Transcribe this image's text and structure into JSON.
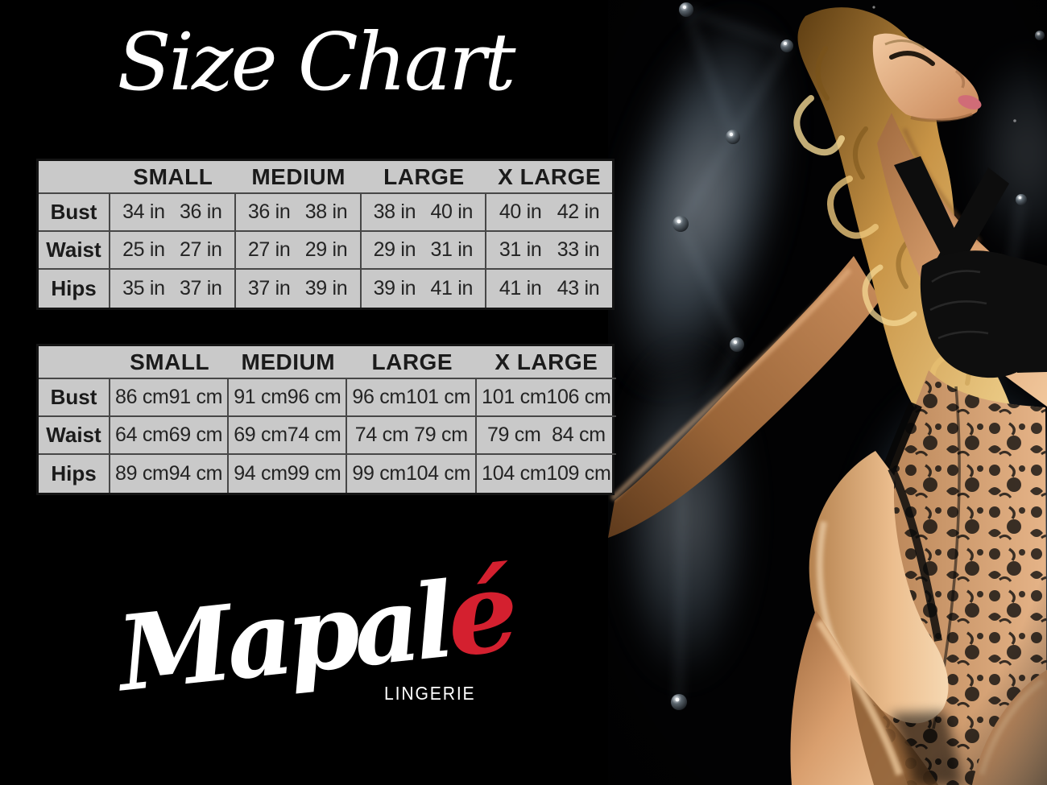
{
  "title": "Size Chart",
  "chart_data": [
    {
      "type": "table",
      "unit": "inches",
      "size_headers": [
        "SMALL",
        "MEDIUM",
        "LARGE",
        "X LARGE"
      ],
      "rows": [
        {
          "label": "Bust",
          "cells": [
            [
              "34 in",
              "36 in"
            ],
            [
              "36 in",
              "38 in"
            ],
            [
              "38 in",
              "40 in"
            ],
            [
              "40 in",
              "42 in"
            ]
          ]
        },
        {
          "label": "Waist",
          "cells": [
            [
              "25 in",
              "27 in"
            ],
            [
              "27 in",
              "29 in"
            ],
            [
              "29 in",
              "31 in"
            ],
            [
              "31 in",
              "33 in"
            ]
          ]
        },
        {
          "label": "Hips",
          "cells": [
            [
              "35 in",
              "37 in"
            ],
            [
              "37 in",
              "39 in"
            ],
            [
              "39 in",
              "41 in"
            ],
            [
              "41 in",
              "43 in"
            ]
          ]
        }
      ]
    },
    {
      "type": "table",
      "unit": "centimeters",
      "size_headers": [
        "SMALL",
        "MEDIUM",
        "LARGE",
        "X LARGE"
      ],
      "rows": [
        {
          "label": "Bust",
          "cells": [
            [
              "86 cm",
              "91 cm"
            ],
            [
              "91 cm",
              "96 cm"
            ],
            [
              "96 cm",
              "101 cm"
            ],
            [
              "101 cm",
              "106 cm"
            ]
          ]
        },
        {
          "label": "Waist",
          "cells": [
            [
              "64 cm",
              "69 cm"
            ],
            [
              "69 cm",
              "74 cm"
            ],
            [
              "74 cm",
              "79 cm"
            ],
            [
              "79 cm",
              "84 cm"
            ]
          ]
        },
        {
          "label": "Hips",
          "cells": [
            [
              "89 cm",
              "94 cm"
            ],
            [
              "94 cm",
              "99 cm"
            ],
            [
              "99 cm",
              "104 cm"
            ],
            [
              "104 cm",
              "109 cm"
            ]
          ]
        }
      ]
    }
  ],
  "brand": {
    "wordmark_main": "Mapal",
    "wordmark_accent": "é",
    "tagline": "LINGERIE",
    "accent_color": "#d4202f",
    "text_color": "#ffffff"
  },
  "colors": {
    "background": "#000000",
    "table_background": "#c9c9c9",
    "table_border": "#474747",
    "table_text": "#1b1b1b"
  }
}
